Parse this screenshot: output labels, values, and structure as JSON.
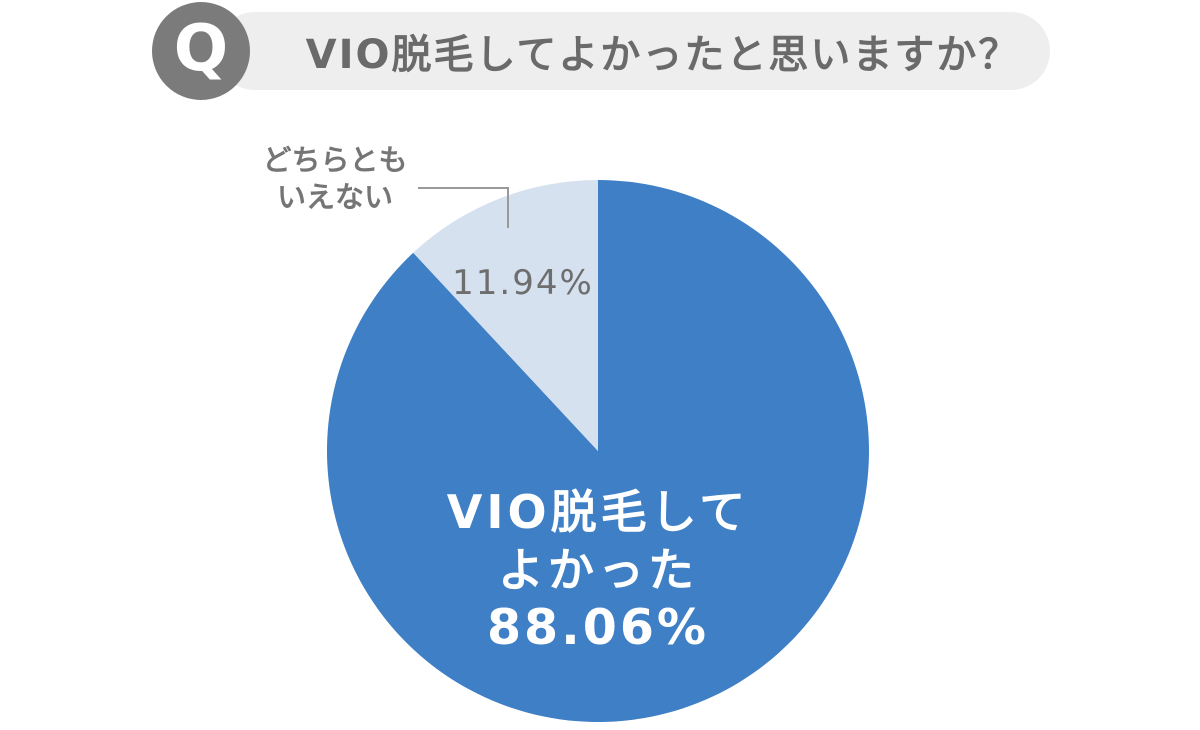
{
  "header": {
    "badge": "Q",
    "question": "VIO脱毛してよかったと思いますか？"
  },
  "colors": {
    "major_slice": "#3E7FC5",
    "minor_slice": "#D6E1F0",
    "badge_bg": "#7B7B7B",
    "pill_bg": "#EEEEEE",
    "question_text": "#6A6A6A",
    "callout_text": "#757575",
    "leader_line": "#9A9A9A",
    "inside_label_text": "#FFFFFF"
  },
  "chart_data": {
    "type": "pie",
    "title": "VIO脱毛してよかったと思いますか？",
    "legend_position": "none",
    "start_angle_deg": -90,
    "direction": "clockwise",
    "slices": [
      {
        "label": "VIO脱毛してよかった",
        "label_lines": [
          "VIO脱毛して",
          "よかった"
        ],
        "value": 88.06,
        "display": "88.06%",
        "color": "#3E7FC5",
        "label_placement": "inside"
      },
      {
        "label": "どちらともいえない",
        "label_lines": [
          "どちらとも",
          "いえない"
        ],
        "value": 11.94,
        "display": "11.94%",
        "color": "#D6E1F0",
        "label_placement": "callout"
      }
    ]
  }
}
